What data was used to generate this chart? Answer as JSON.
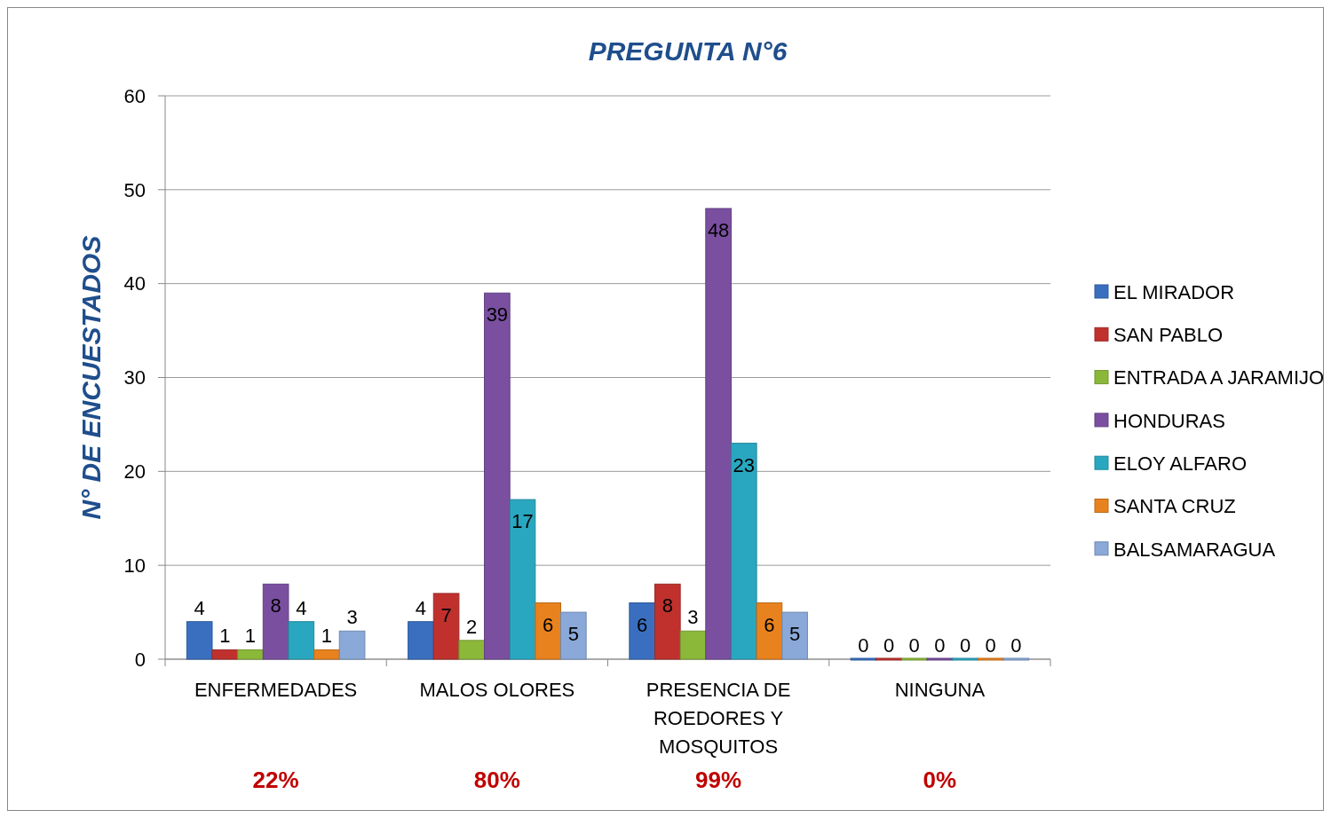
{
  "chart_data": {
    "type": "bar",
    "title": "PREGUNTA N°6",
    "ylabel": "N° DE ENCUESTADOS",
    "categories": [
      "ENFERMEDADES",
      "MALOS OLORES",
      "PRESENCIA DE ROEDORES Y MOSQUITOS",
      "NINGUNA"
    ],
    "series": [
      {
        "name": "EL MIRADOR",
        "color": "#3a6fc0",
        "values": [
          4,
          4,
          6,
          0
        ]
      },
      {
        "name": "SAN PABLO",
        "color": "#c0312e",
        "values": [
          1,
          7,
          8,
          0
        ]
      },
      {
        "name": "ENTRADA A JARAMIJO",
        "color": "#8cb83a",
        "values": [
          1,
          2,
          3,
          0
        ]
      },
      {
        "name": "HONDURAS",
        "color": "#7a4fa0",
        "values": [
          8,
          39,
          48,
          0
        ]
      },
      {
        "name": "ELOY ALFARO",
        "color": "#2aa7c0",
        "values": [
          4,
          17,
          23,
          0
        ]
      },
      {
        "name": "SANTA CRUZ",
        "color": "#e8821e",
        "values": [
          1,
          6,
          6,
          0
        ]
      },
      {
        "name": "BALSAMARAGUA",
        "color": "#8aa8d8",
        "values": [
          3,
          5,
          5,
          0
        ]
      }
    ],
    "ylim": [
      0,
      60
    ],
    "yticks": [
      0,
      10,
      20,
      30,
      40,
      50,
      60
    ],
    "grid": "y",
    "legend": "right",
    "data_labels": true,
    "annotations": [
      "22%",
      "80%",
      "99%",
      "0%"
    ]
  }
}
